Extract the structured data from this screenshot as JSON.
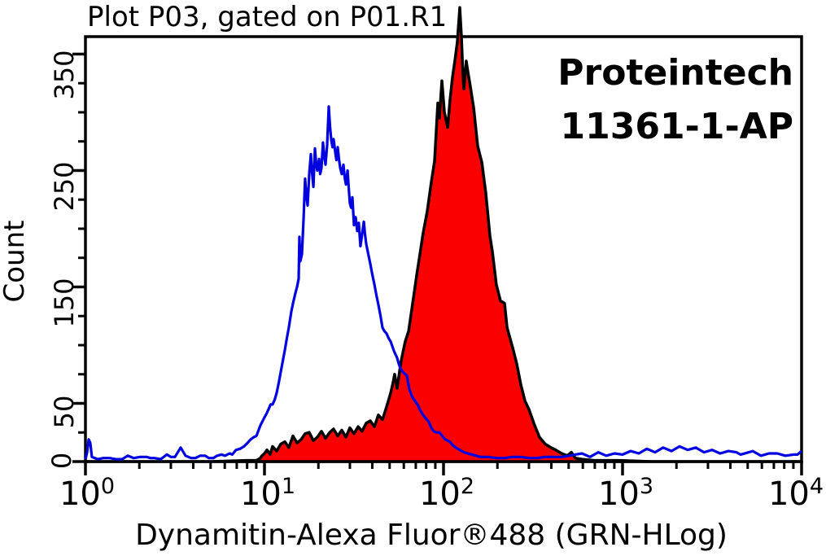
{
  "title": "Plot P03, gated on P01.R1",
  "annotation": {
    "line1": "Proteintech",
    "line2": "11361-1-AP"
  },
  "chart_data": {
    "type": "area",
    "subtype": "flow-cytometry-histogram-overlay",
    "title": "Plot P03, gated on P01.R1",
    "xlabel": "Dynamitin-Alexa Fluor®488 (GRN-HLog)",
    "ylabel": "Count",
    "x_scale": "log10",
    "x_range": [
      1,
      10000
    ],
    "x_log_decades": 4,
    "ylim": [
      0,
      365
    ],
    "grid": false,
    "legend": "none",
    "background": "#ffffff",
    "frame_color": "#000000",
    "x_ticks": [
      {
        "base": "10",
        "exp": "0",
        "log": 0
      },
      {
        "base": "10",
        "exp": "1",
        "log": 1
      },
      {
        "base": "10",
        "exp": "2",
        "log": 2
      },
      {
        "base": "10",
        "exp": "3",
        "log": 3
      },
      {
        "base": "10",
        "exp": "4",
        "log": 4
      }
    ],
    "y_ticks": [
      {
        "label": "0",
        "value": 0
      },
      {
        "label": "50",
        "value": 50
      },
      {
        "label": "150",
        "value": 150
      },
      {
        "label": "250",
        "value": 250
      },
      {
        "label": "350",
        "value": 350
      }
    ],
    "y_minor_tick_step": 25,
    "series": [
      {
        "name": "red_filled_histogram",
        "style": "filled",
        "fill": "#fb0000",
        "stroke": "#000000",
        "line_width": 3.5,
        "peak": {
          "x": 123,
          "count": 390
        },
        "points": [
          [
            0.0,
            0
          ],
          [
            0.7,
            0
          ],
          [
            0.9,
            1
          ],
          [
            0.955,
            1
          ],
          [
            0.977,
            3
          ],
          [
            0.986,
            5
          ],
          [
            1.0,
            7
          ],
          [
            1.014,
            10
          ],
          [
            1.032,
            6
          ],
          [
            1.045,
            13
          ],
          [
            1.068,
            9
          ],
          [
            1.091,
            15
          ],
          [
            1.114,
            17
          ],
          [
            1.136,
            12
          ],
          [
            1.159,
            22
          ],
          [
            1.182,
            16
          ],
          [
            1.205,
            19
          ],
          [
            1.227,
            24
          ],
          [
            1.25,
            25
          ],
          [
            1.273,
            18
          ],
          [
            1.295,
            21
          ],
          [
            1.318,
            26
          ],
          [
            1.341,
            20
          ],
          [
            1.364,
            25
          ],
          [
            1.386,
            28
          ],
          [
            1.409,
            22
          ],
          [
            1.432,
            27
          ],
          [
            1.455,
            21
          ],
          [
            1.477,
            29
          ],
          [
            1.5,
            24
          ],
          [
            1.523,
            30
          ],
          [
            1.545,
            26
          ],
          [
            1.568,
            33
          ],
          [
            1.591,
            35
          ],
          [
            1.614,
            30
          ],
          [
            1.636,
            40
          ],
          [
            1.659,
            36
          ],
          [
            1.682,
            47
          ],
          [
            1.705,
            59
          ],
          [
            1.718,
            68
          ],
          [
            1.727,
            75
          ],
          [
            1.741,
            63
          ],
          [
            1.755,
            78
          ],
          [
            1.764,
            87
          ],
          [
            1.786,
            103
          ],
          [
            1.805,
            112
          ],
          [
            1.827,
            135
          ],
          [
            1.85,
            160
          ],
          [
            1.868,
            178
          ],
          [
            1.886,
            196
          ],
          [
            1.909,
            215
          ],
          [
            1.932,
            240
          ],
          [
            1.95,
            258
          ],
          [
            1.968,
            308
          ],
          [
            1.977,
            295
          ],
          [
            1.991,
            327
          ],
          [
            2.005,
            300
          ],
          [
            2.023,
            287
          ],
          [
            2.036,
            310
          ],
          [
            2.05,
            330
          ],
          [
            2.064,
            345
          ],
          [
            2.077,
            360
          ],
          [
            2.091,
            390
          ],
          [
            2.1,
            365
          ],
          [
            2.109,
            330
          ],
          [
            2.114,
            320
          ],
          [
            2.127,
            344
          ],
          [
            2.136,
            335
          ],
          [
            2.15,
            322
          ],
          [
            2.168,
            304
          ],
          [
            2.191,
            271
          ],
          [
            2.214,
            257
          ],
          [
            2.236,
            231
          ],
          [
            2.259,
            194
          ],
          [
            2.273,
            180
          ],
          [
            2.295,
            152
          ],
          [
            2.318,
            138
          ],
          [
            2.341,
            136
          ],
          [
            2.355,
            115
          ],
          [
            2.386,
            98
          ],
          [
            2.409,
            84
          ],
          [
            2.432,
            66
          ],
          [
            2.455,
            52
          ],
          [
            2.477,
            45
          ],
          [
            2.509,
            31
          ],
          [
            2.536,
            21
          ],
          [
            2.568,
            15
          ],
          [
            2.6,
            12
          ],
          [
            2.627,
            10
          ],
          [
            2.659,
            7
          ],
          [
            2.691,
            5
          ],
          [
            2.714,
            8
          ],
          [
            2.736,
            3
          ],
          [
            2.773,
            2
          ],
          [
            2.841,
            1
          ],
          [
            2.977,
            1
          ],
          [
            3.159,
            0
          ],
          [
            3.5,
            0
          ],
          [
            4.0,
            0
          ]
        ]
      },
      {
        "name": "blue_outline_histogram",
        "style": "outline",
        "fill": "none",
        "stroke": "#0000e0",
        "line_width": 3.2,
        "peak": {
          "x": 23,
          "count": 305
        },
        "points": [
          [
            0.0,
            2
          ],
          [
            0.009,
            8
          ],
          [
            0.018,
            19
          ],
          [
            0.027,
            16
          ],
          [
            0.036,
            4
          ],
          [
            0.068,
            2
          ],
          [
            0.1,
            3
          ],
          [
            0.136,
            3
          ],
          [
            0.17,
            2
          ],
          [
            0.205,
            2
          ],
          [
            0.236,
            5
          ],
          [
            0.27,
            3
          ],
          [
            0.305,
            4
          ],
          [
            0.341,
            4
          ],
          [
            0.364,
            3
          ],
          [
            0.386,
            3
          ],
          [
            0.42,
            2
          ],
          [
            0.455,
            6
          ],
          [
            0.477,
            4
          ],
          [
            0.5,
            4
          ],
          [
            0.532,
            12
          ],
          [
            0.559,
            5
          ],
          [
            0.59,
            3
          ],
          [
            0.614,
            3
          ],
          [
            0.641,
            5
          ],
          [
            0.668,
            5
          ],
          [
            0.69,
            3
          ],
          [
            0.714,
            3
          ],
          [
            0.736,
            5
          ],
          [
            0.759,
            6
          ],
          [
            0.78,
            5
          ],
          [
            0.805,
            7
          ],
          [
            0.82,
            6
          ],
          [
            0.841,
            10
          ],
          [
            0.864,
            11
          ],
          [
            0.886,
            13
          ],
          [
            0.905,
            16
          ],
          [
            0.923,
            19
          ],
          [
            0.94,
            21
          ],
          [
            0.955,
            22
          ],
          [
            0.977,
            31
          ],
          [
            1.0,
            38
          ],
          [
            1.011,
            41
          ],
          [
            1.023,
            45
          ],
          [
            1.034,
            49
          ],
          [
            1.045,
            49
          ],
          [
            1.057,
            53
          ],
          [
            1.068,
            59
          ],
          [
            1.08,
            68
          ],
          [
            1.091,
            77
          ],
          [
            1.102,
            86
          ],
          [
            1.114,
            96
          ],
          [
            1.125,
            106
          ],
          [
            1.136,
            115
          ],
          [
            1.15,
            129
          ],
          [
            1.161,
            137
          ],
          [
            1.173,
            145
          ],
          [
            1.182,
            150
          ],
          [
            1.191,
            157
          ],
          [
            1.195,
            193
          ],
          [
            1.2,
            172
          ],
          [
            1.209,
            178
          ],
          [
            1.218,
            208
          ],
          [
            1.227,
            243
          ],
          [
            1.234,
            228
          ],
          [
            1.241,
            220
          ],
          [
            1.25,
            247
          ],
          [
            1.259,
            264
          ],
          [
            1.266,
            248
          ],
          [
            1.273,
            236
          ],
          [
            1.282,
            269
          ],
          [
            1.289,
            255
          ],
          [
            1.295,
            250
          ],
          [
            1.305,
            260
          ],
          [
            1.311,
            247
          ],
          [
            1.318,
            252
          ],
          [
            1.327,
            274
          ],
          [
            1.334,
            262
          ],
          [
            1.341,
            255
          ],
          [
            1.35,
            272
          ],
          [
            1.359,
            305
          ],
          [
            1.366,
            288
          ],
          [
            1.373,
            276
          ],
          [
            1.38,
            270
          ],
          [
            1.386,
            277
          ],
          [
            1.395,
            266
          ],
          [
            1.402,
            259
          ],
          [
            1.409,
            270
          ],
          [
            1.416,
            260
          ],
          [
            1.423,
            252
          ],
          [
            1.432,
            247
          ],
          [
            1.441,
            255
          ],
          [
            1.448,
            244
          ],
          [
            1.455,
            238
          ],
          [
            1.464,
            250
          ],
          [
            1.47,
            236
          ],
          [
            1.477,
            222
          ],
          [
            1.484,
            218
          ],
          [
            1.491,
            227
          ],
          [
            1.5,
            203
          ],
          [
            1.509,
            210
          ],
          [
            1.518,
            198
          ],
          [
            1.527,
            205
          ],
          [
            1.536,
            185
          ],
          [
            1.545,
            195
          ],
          [
            1.555,
            206
          ],
          [
            1.561,
            196
          ],
          [
            1.568,
            187
          ],
          [
            1.58,
            178
          ],
          [
            1.591,
            170
          ],
          [
            1.602,
            161
          ],
          [
            1.614,
            152
          ],
          [
            1.625,
            143
          ],
          [
            1.636,
            135
          ],
          [
            1.648,
            125
          ],
          [
            1.659,
            115
          ],
          [
            1.67,
            112
          ],
          [
            1.682,
            110
          ],
          [
            1.693,
            106
          ],
          [
            1.705,
            103
          ],
          [
            1.714,
            99
          ],
          [
            1.723,
            95
          ],
          [
            1.732,
            92
          ],
          [
            1.741,
            89
          ],
          [
            1.75,
            84
          ],
          [
            1.759,
            80
          ],
          [
            1.773,
            77
          ],
          [
            1.786,
            75
          ],
          [
            1.795,
            74
          ],
          [
            1.809,
            62
          ],
          [
            1.827,
            55
          ],
          [
            1.841,
            52
          ],
          [
            1.855,
            49
          ],
          [
            1.87,
            44
          ],
          [
            1.886,
            40
          ],
          [
            1.902,
            37
          ],
          [
            1.918,
            34
          ],
          [
            1.932,
            29
          ],
          [
            1.945,
            26
          ],
          [
            1.961,
            25
          ],
          [
            1.977,
            25
          ],
          [
            1.993,
            22
          ],
          [
            2.009,
            19
          ],
          [
            2.023,
            18
          ],
          [
            2.036,
            17
          ],
          [
            2.052,
            14
          ],
          [
            2.068,
            12
          ],
          [
            2.091,
            10
          ],
          [
            2.114,
            8
          ],
          [
            2.136,
            7
          ],
          [
            2.159,
            6
          ],
          [
            2.182,
            5
          ],
          [
            2.205,
            4
          ],
          [
            2.227,
            4
          ],
          [
            2.25,
            4
          ],
          [
            2.295,
            3
          ],
          [
            2.341,
            3
          ],
          [
            2.386,
            4
          ],
          [
            2.432,
            4
          ],
          [
            2.477,
            3
          ],
          [
            2.523,
            3
          ],
          [
            2.568,
            4
          ],
          [
            2.614,
            4
          ],
          [
            2.659,
            4
          ],
          [
            2.705,
            5
          ],
          [
            2.736,
            6
          ],
          [
            2.773,
            7
          ],
          [
            2.818,
            4
          ],
          [
            2.864,
            8
          ],
          [
            2.909,
            5
          ],
          [
            2.955,
            7
          ],
          [
            3.0,
            6
          ],
          [
            3.045,
            9
          ],
          [
            3.091,
            7
          ],
          [
            3.136,
            11
          ],
          [
            3.182,
            8
          ],
          [
            3.227,
            12
          ],
          [
            3.273,
            9
          ],
          [
            3.318,
            13
          ],
          [
            3.364,
            10
          ],
          [
            3.409,
            12
          ],
          [
            3.455,
            8
          ],
          [
            3.5,
            10
          ],
          [
            3.545,
            7
          ],
          [
            3.591,
            9
          ],
          [
            3.636,
            8
          ],
          [
            3.659,
            6
          ],
          [
            3.705,
            8
          ],
          [
            3.727,
            9
          ],
          [
            3.773,
            5
          ],
          [
            3.818,
            7
          ],
          [
            3.864,
            7
          ],
          [
            3.909,
            5
          ],
          [
            3.955,
            6
          ],
          [
            3.977,
            6
          ],
          [
            4.0,
            9
          ]
        ]
      }
    ]
  }
}
